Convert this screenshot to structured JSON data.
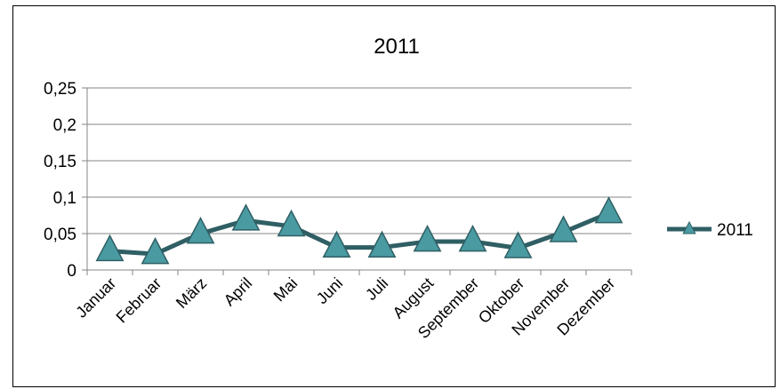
{
  "chart_data": {
    "type": "line",
    "title": "2011",
    "categories": [
      "Januar",
      "Februar",
      "März",
      "April",
      "Mai",
      "Juni",
      "Juli",
      "August",
      "September",
      "Oktober",
      "November",
      "Dezember"
    ],
    "series": [
      {
        "name": "2011",
        "values": [
          0.026,
          0.022,
          0.05,
          0.068,
          0.06,
          0.031,
          0.031,
          0.039,
          0.039,
          0.03,
          0.052,
          0.078
        ]
      }
    ],
    "y_ticks": [
      "0",
      "0,05",
      "0,1",
      "0,15",
      "0,2",
      "0,25"
    ],
    "ylim": [
      0,
      0.25
    ],
    "grid": true,
    "legend_position": "right",
    "colors": {
      "line": "#2f5f64",
      "marker_fill": "#4a9aa2",
      "marker_stroke": "#2f5f64",
      "grid": "#868686"
    }
  }
}
